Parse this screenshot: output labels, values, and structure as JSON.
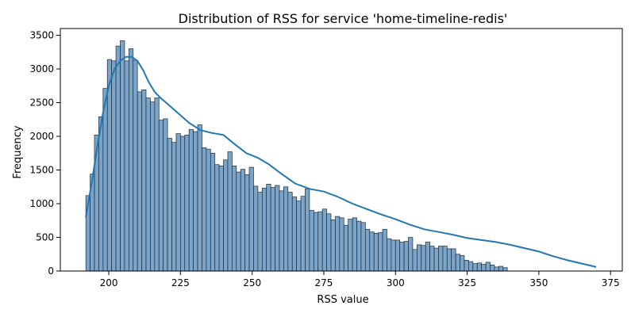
{
  "chart_data": {
    "type": "bar",
    "title": "Distribution of RSS for service 'home-timeline-redis'",
    "xlabel": "RSS value",
    "ylabel": "Frequency",
    "xlim": [
      183.1,
      379.1
    ],
    "ylim": [
      0,
      3600
    ],
    "xticks": [
      200,
      225,
      250,
      275,
      300,
      325,
      350,
      375
    ],
    "yticks": [
      0,
      500,
      1000,
      1500,
      2000,
      2500,
      3000,
      3500
    ],
    "grid": false,
    "bin_start": 192,
    "bin_width": 1.5,
    "bar_color": "#7ba4c9",
    "bar_edge_color": "#1f2a36",
    "kde_color": "#1f77b4",
    "series": [
      {
        "values": [
          1120,
          1440,
          2020,
          2290,
          2710,
          3140,
          3120,
          3340,
          3420,
          3120,
          3300,
          3130,
          2660,
          2690,
          2570,
          2510,
          2570,
          2240,
          2260,
          1970,
          1910,
          2040,
          2000,
          2020,
          2100,
          2070,
          2170,
          1830,
          1810,
          1750,
          1580,
          1560,
          1650,
          1770,
          1560,
          1470,
          1510,
          1430,
          1540,
          1260,
          1170,
          1230,
          1290,
          1240,
          1270,
          1190,
          1250,
          1170,
          1100,
          1040,
          1110,
          1220,
          900,
          870,
          880,
          920,
          850,
          760,
          810,
          790,
          680,
          770,
          790,
          740,
          720,
          620,
          580,
          560,
          570,
          620,
          480,
          460,
          460,
          430,
          440,
          500,
          320,
          390,
          380,
          430,
          370,
          340,
          370,
          370,
          330,
          330,
          250,
          230,
          160,
          140,
          110,
          120,
          100,
          130,
          90,
          60,
          70,
          50
        ]
      }
    ],
    "kde": {
      "x": [
        192,
        194,
        196,
        198,
        200,
        202,
        204,
        206,
        208,
        210,
        212,
        214,
        216,
        218,
        220,
        224,
        228,
        232,
        236,
        240,
        244,
        248,
        252,
        256,
        260,
        265,
        270,
        275,
        280,
        285,
        290,
        295,
        300,
        305,
        310,
        315,
        320,
        325,
        330,
        335,
        340,
        345,
        350,
        355,
        360,
        365,
        370
      ],
      "y": [
        800,
        1300,
        1850,
        2350,
        2750,
        3000,
        3120,
        3180,
        3180,
        3120,
        2980,
        2800,
        2660,
        2570,
        2500,
        2350,
        2200,
        2090,
        2050,
        2020,
        1880,
        1750,
        1680,
        1580,
        1450,
        1300,
        1220,
        1180,
        1100,
        1000,
        920,
        840,
        770,
        690,
        620,
        580,
        540,
        490,
        460,
        430,
        390,
        340,
        290,
        220,
        160,
        110,
        60
      ]
    }
  }
}
